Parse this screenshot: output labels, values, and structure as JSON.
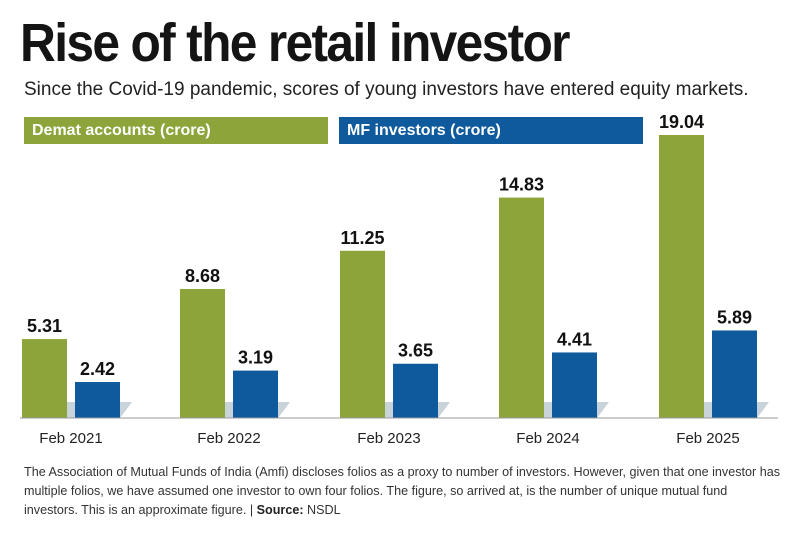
{
  "title": "Rise of the retail investor",
  "subtitle": "Since the Covid-19 pandemic, scores of young investors have entered equity markets.",
  "legend": [
    {
      "label": "Demat accounts (crore)",
      "color": "#8ca43a"
    },
    {
      "label": "MF investors (crore)",
      "color": "#0e5a9c"
    }
  ],
  "chart_data": {
    "type": "bar",
    "categories": [
      "Feb 2021",
      "Feb 2022",
      "Feb 2023",
      "Feb 2024",
      "Feb 2025"
    ],
    "series": [
      {
        "name": "Demat accounts (crore)",
        "color": "#8ca43a",
        "values": [
          5.31,
          8.68,
          11.25,
          14.83,
          19.04
        ]
      },
      {
        "name": "MF investors (crore)",
        "color": "#0e5a9c",
        "values": [
          2.42,
          3.19,
          3.65,
          4.41,
          5.89
        ]
      }
    ],
    "value_labels": [
      [
        "5.31",
        "8.68",
        "11.25",
        "14.83",
        "19.04"
      ],
      [
        "2.42",
        "3.19",
        "3.65",
        "4.41",
        "5.89"
      ]
    ],
    "ylim": [
      0,
      19.04
    ],
    "grid": false,
    "legend_position": "top"
  },
  "note": {
    "text": "The Association of Mutual Funds of India (Amfi) discloses folios as a proxy to number of investors. However, given that one investor has multiple folios, we have assumed one investor to own four folios. The figure, so arrived at, is the number of unique mutual fund investors. This is an approximate figure. |",
    "source_label": "Source:",
    "source_value": "NSDL"
  }
}
